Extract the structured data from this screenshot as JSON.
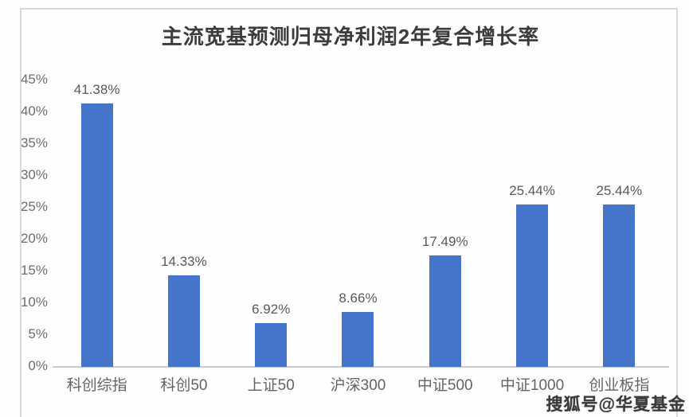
{
  "title": "主流宽基预测归母净利润2年复合增长率",
  "watermark": "搜狐号@华夏基金",
  "colors": {
    "bar": "#4575cb",
    "chart_border": "#d9d9d9",
    "axis_line": "#c9c9c9",
    "title_text": "#3c3c3c",
    "data_label_text": "#595959",
    "tick_text": "#6e6e6e",
    "category_text": "#646464",
    "watermark_text": "#3a3a3a"
  },
  "chart_data": {
    "type": "bar",
    "title": "主流宽基预测归母净利润2年复合增长率",
    "categories": [
      "科创综指",
      "科创50",
      "上证50",
      "沪深300",
      "中证500",
      "中证1000",
      "创业板指"
    ],
    "values": [
      41.38,
      14.33,
      6.92,
      8.66,
      17.49,
      25.44,
      25.44
    ],
    "data_labels": [
      "41.38%",
      "14.33%",
      "6.92%",
      "8.66%",
      "17.49%",
      "25.44%",
      "25.44%"
    ],
    "xlabel": "",
    "ylabel": "",
    "ylim": [
      0,
      45
    ],
    "ytick_step": 5,
    "ytick_labels": [
      "45%",
      "40%",
      "35%",
      "30%",
      "25%",
      "20%",
      "15%",
      "10%",
      "5%",
      "0%"
    ],
    "grid": false,
    "legend": false,
    "bar_color": "#4575cb"
  }
}
